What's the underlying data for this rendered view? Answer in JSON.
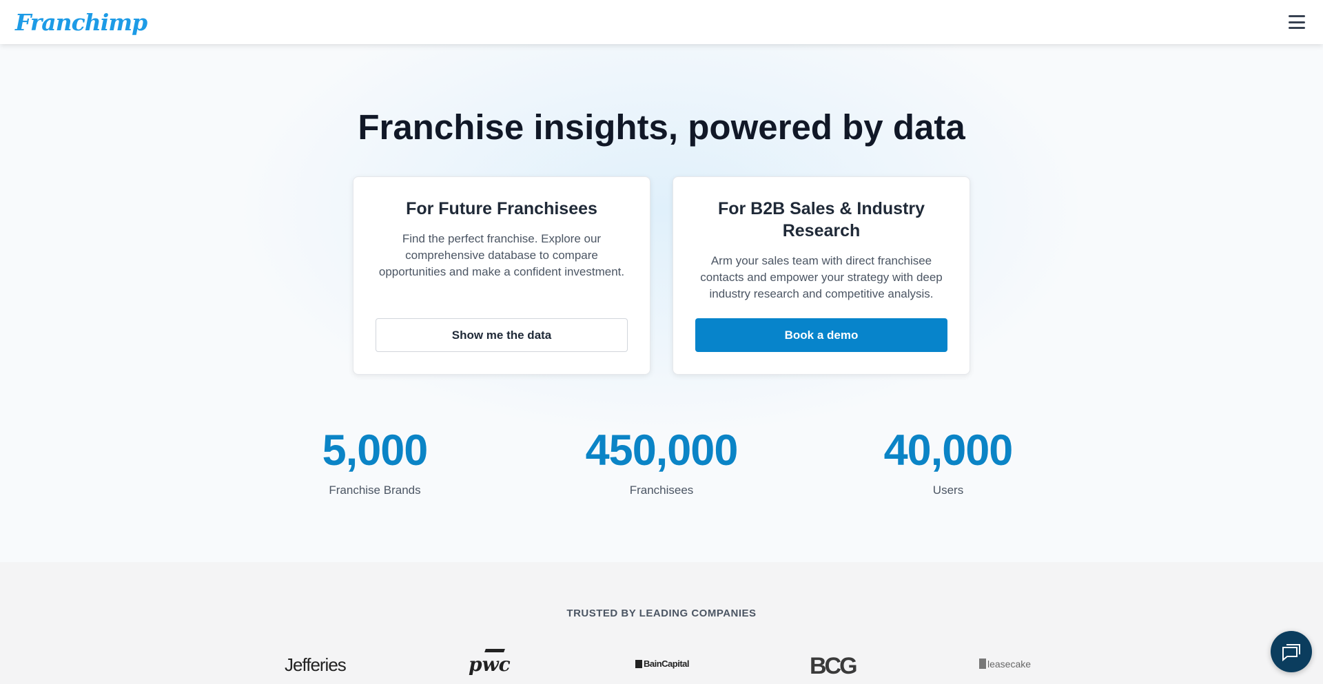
{
  "header": {
    "logo": "Franchimp",
    "menu_icon": "hamburger-icon"
  },
  "hero": {
    "title": "Franchise insights, powered by data"
  },
  "cards": [
    {
      "title": "For Future Franchisees",
      "text": "Find the perfect franchise. Explore our comprehensive database to compare opportunities and make a confident investment.",
      "button": "Show me the data"
    },
    {
      "title": "For B2B Sales & Industry Research",
      "text": "Arm your sales team with direct franchisee contacts and empower your strategy with deep industry research and competitive analysis.",
      "button": "Book a demo"
    }
  ],
  "stats": [
    {
      "value": "5,000",
      "label": "Franchise Brands"
    },
    {
      "value": "450,000",
      "label": "Franchisees"
    },
    {
      "value": "40,000",
      "label": "Users"
    }
  ],
  "trusted": {
    "title": "TRUSTED BY LEADING COMPANIES",
    "logos": [
      "Jefferies",
      "pwc",
      "BainCapital",
      "BCG",
      "leasecake"
    ]
  },
  "colors": {
    "brand": "#1d9be6",
    "accent": "#0784cb",
    "chat": "#0b3d5e"
  }
}
